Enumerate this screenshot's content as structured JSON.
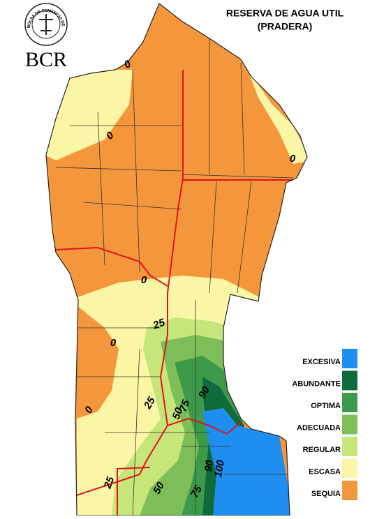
{
  "header": {
    "title": [
      "RESERVA DE AGUA UTIL",
      "(PRADERA)"
    ],
    "logo": "BCR",
    "seal": "BOLSA DE COMERCIO DE ROSARIO"
  },
  "legend": [
    {
      "label": "EXCESIVA",
      "color": "#1e8ff0"
    },
    {
      "label": "ABUNDANTE",
      "color": "#0f6b3a"
    },
    {
      "label": "OPTIMA",
      "color": "#3c9a4a"
    },
    {
      "label": "ADECUADA",
      "color": "#7dbe58"
    },
    {
      "label": "REGULAR",
      "color": "#c6e67a"
    },
    {
      "label": "ESCASA",
      "color": "#fbf6a6"
    },
    {
      "label": "SEQUIA",
      "color": "#f4963c"
    }
  ],
  "contour_labels": [
    "0",
    "0",
    "0",
    "0",
    "0",
    "0",
    "25",
    "25",
    "25",
    "50",
    "50",
    "75",
    "75",
    "90",
    "90",
    "100"
  ]
}
